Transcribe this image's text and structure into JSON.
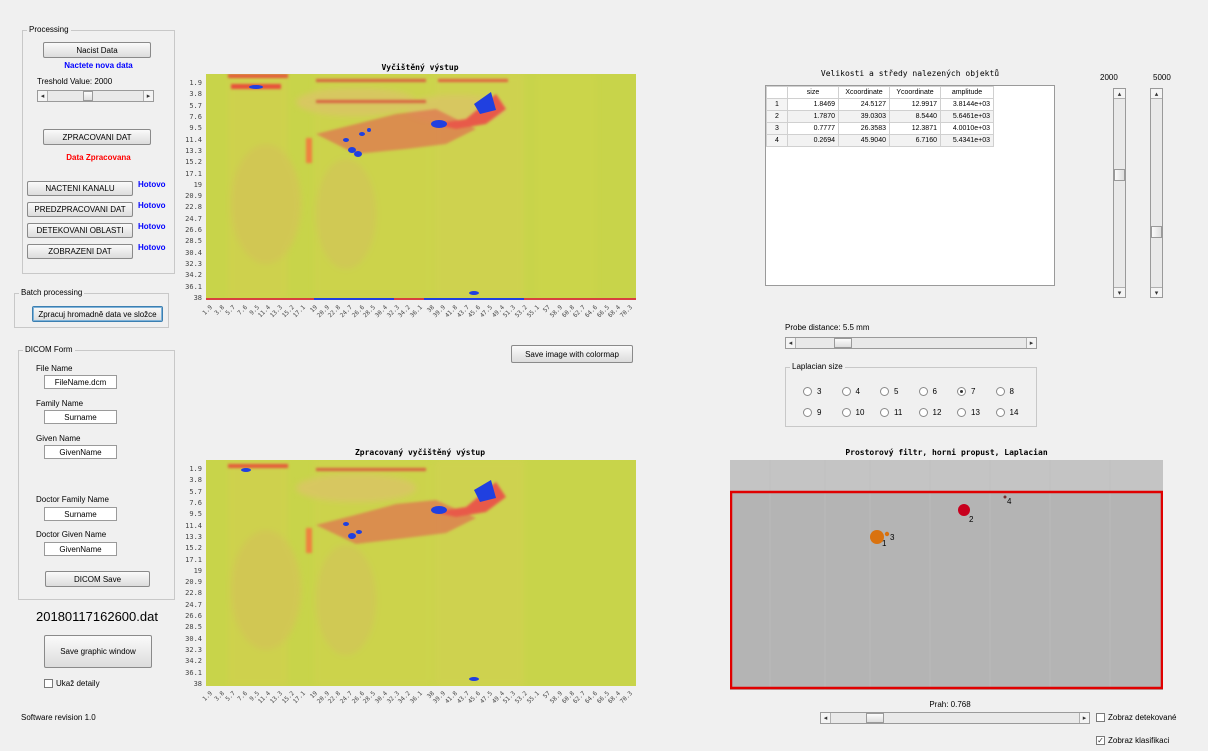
{
  "processing": {
    "title": "Processing",
    "load_button": "Nacist Data",
    "load_status": "Nactete nova data",
    "threshold_label": "Treshold Value: 2000",
    "threshold_fraction": 0.23,
    "process_button": "ZPRACOVANI DAT",
    "process_status": "Data Zpracovana",
    "steps": [
      {
        "label": "NACTENI KANALU",
        "status": "Hotovo"
      },
      {
        "label": "PREDZPRACOVANI DAT",
        "status": "Hotovo"
      },
      {
        "label": "DETEKOVANI OBLASTI",
        "status": "Hotovo"
      },
      {
        "label": "ZOBRAZENI DAT",
        "status": "Hotovo"
      }
    ]
  },
  "batch": {
    "title": "Batch processing",
    "button": "Zpracuj hromadně data ve složce"
  },
  "dicom": {
    "title": "DICOM Form",
    "file_name_label": "File Name",
    "file_name_value": "FileName.dcm",
    "family_name_label": "Family Name",
    "family_name_value": "Surname",
    "given_name_label": "Given Name",
    "given_name_value": "GivenName",
    "doctor_family_label": "Doctor Family Name",
    "doctor_family_value": "Surname",
    "doctor_given_label": "Doctor Given Name",
    "doctor_given_value": "GivenName",
    "save_button": "DICOM Save"
  },
  "file_label": "20180117162600.dat",
  "save_graphic_button": "Save graphic window",
  "show_details_label": "Ukaž detaily",
  "show_details_checked": false,
  "software_revision": "Software revision 1.0",
  "top_plot": {
    "title": "Vyčištěný výstup",
    "save_colormap_button": "Save image with colormap"
  },
  "bottom_plot": {
    "title": "Zpracovaný vyčištěný výstup"
  },
  "y_ticks": [
    "1.9",
    "3.8",
    "5.7",
    "7.6",
    "9.5",
    "11.4",
    "13.3",
    "15.2",
    "17.1",
    "19",
    "20.9",
    "22.8",
    "24.7",
    "26.6",
    "28.5",
    "30.4",
    "32.3",
    "34.2",
    "36.1",
    "38"
  ],
  "x_ticks": [
    "1.9",
    "3.8",
    "5.7",
    "7.6",
    "9.5",
    "11.4",
    "13.3",
    "15.2",
    "17.1",
    "19",
    "20.9",
    "22.8",
    "24.7",
    "26.6",
    "28.5",
    "30.4",
    "32.3",
    "34.2",
    "36.1",
    "38",
    "39.9",
    "41.8",
    "43.7",
    "45.6",
    "47.5",
    "49.4",
    "51.3",
    "53.2",
    "55.1",
    "57",
    "58.9",
    "60.8",
    "62.7",
    "64.6",
    "66.5",
    "68.4",
    "70.3"
  ],
  "results": {
    "title": "Velikosti a středy nalezených objektů",
    "columns": [
      "size",
      "Xcoordinate",
      "Ycoordinate",
      "amplitude"
    ],
    "rows": [
      {
        "id": "1",
        "size": "1.8469",
        "x": "24.5127",
        "y": "12.9917",
        "amp": "3.8144e+03"
      },
      {
        "id": "2",
        "size": "1.7870",
        "x": "39.0303",
        "y": "8.5440",
        "amp": "5.6461e+03"
      },
      {
        "id": "3",
        "size": "0.7777",
        "x": "26.3583",
        "y": "12.3871",
        "amp": "4.0010e+03"
      },
      {
        "id": "4",
        "size": "0.2694",
        "x": "45.9040",
        "y": "6.7160",
        "amp": "5.4341e+03"
      }
    ]
  },
  "vsliders": {
    "left_label": "2000",
    "right_label": "5000",
    "left_fraction": 0.4,
    "right_fraction": 0.72
  },
  "probe": {
    "label": "Probe distance: 5.5 mm",
    "fraction": 0.18
  },
  "laplacian": {
    "title": "Laplacian size",
    "options": [
      "3",
      "4",
      "5",
      "6",
      "7",
      "8",
      "9",
      "10",
      "11",
      "12",
      "13",
      "14"
    ],
    "selected": "7"
  },
  "filter_plot": {
    "title": "Prostorový filtr, horni propust, Laplacian",
    "object_labels": [
      "1",
      "2",
      "3",
      "4"
    ],
    "box_color": "#e00000",
    "colors": {
      "obj1": "#d9720f",
      "obj2": "#c8001e"
    }
  },
  "threshold2": {
    "label": "Prah: 0.768",
    "fraction": 0.15
  },
  "show_detected": {
    "label": "Zobraz detekované",
    "checked": false
  },
  "show_class": {
    "label": "Zobraz klasifikaci",
    "checked": true
  }
}
